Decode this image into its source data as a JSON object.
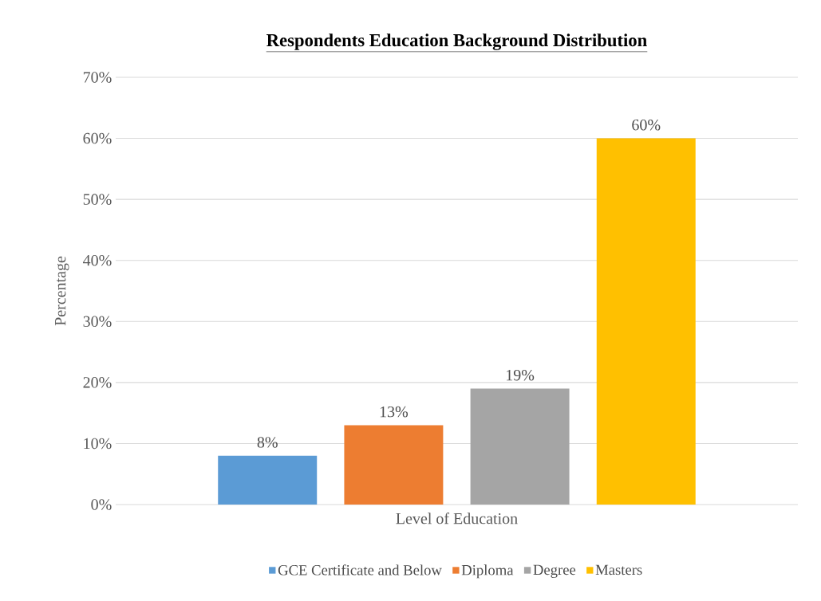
{
  "chart_data": {
    "type": "bar",
    "title": "Respondents Education Background Distribution",
    "xlabel": "Level of Education",
    "ylabel": "Percentage",
    "categories": [
      null
    ],
    "series": [
      {
        "name": "GCE Certificate and Below",
        "color": "#5b9bd5",
        "values": [
          8
        ],
        "value_labels": [
          "8%"
        ]
      },
      {
        "name": "Diploma",
        "color": "#ed7d31",
        "values": [
          13
        ],
        "value_labels": [
          "13%"
        ]
      },
      {
        "name": "Degree",
        "color": "#a5a5a5",
        "values": [
          19
        ],
        "value_labels": [
          "19%"
        ]
      },
      {
        "name": "Masters",
        "color": "#ffc000",
        "values": [
          60
        ],
        "value_labels": [
          "60%"
        ]
      }
    ],
    "ylim": [
      0,
      70
    ],
    "yticks": [
      {
        "value": 0,
        "label": "0%"
      },
      {
        "value": 10,
        "label": "10%"
      },
      {
        "value": 20,
        "label": "20%"
      },
      {
        "value": 30,
        "label": "30%"
      },
      {
        "value": 40,
        "label": "40%"
      },
      {
        "value": 50,
        "label": "50%"
      },
      {
        "value": 60,
        "label": "60%"
      },
      {
        "value": 70,
        "label": "70%"
      }
    ],
    "grid": "y",
    "legend": "bottom"
  }
}
